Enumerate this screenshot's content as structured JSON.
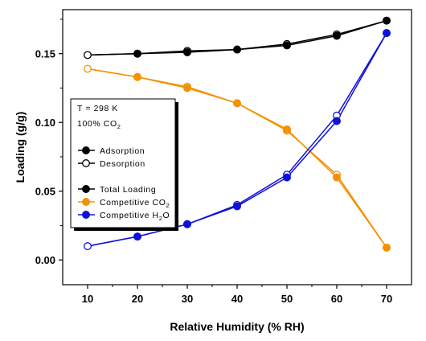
{
  "chart_data": {
    "type": "line",
    "xlabel": "Relative Humidity (% RH)",
    "ylabel": "Loading (g/g)",
    "x": [
      10,
      20,
      30,
      40,
      50,
      60,
      70
    ],
    "xlim": [
      5,
      75
    ],
    "ylim": [
      -0.018,
      0.182
    ],
    "xticks": [
      "10",
      "20",
      "30",
      "40",
      "50",
      "60",
      "70"
    ],
    "yticks": [
      "0.00",
      "0.05",
      "0.10",
      "0.15"
    ],
    "conditions": {
      "temperature": "T = 298 K",
      "gas": "100% CO",
      "gas_subscript": "2"
    },
    "legend": {
      "placement": "upper-left",
      "marker_entries": [
        {
          "label": "Adsorption",
          "marker": "filled",
          "color": "#000000"
        },
        {
          "label": "Desorption",
          "marker": "open",
          "color": "#000000"
        }
      ],
      "series_entries": [
        {
          "label": "Total Loading",
          "subscript": "",
          "color": "#000000"
        },
        {
          "label": "Competitive CO",
          "subscript": "2",
          "color": "#f39200"
        },
        {
          "label": "Competitive H",
          "subscript": "2",
          "label_tail": "O",
          "color": "#1010d8"
        }
      ]
    },
    "series": [
      {
        "name": "Total Loading",
        "color": "#000000",
        "adsorption": [
          0.149,
          0.15,
          0.151,
          0.153,
          0.156,
          0.163,
          0.174
        ],
        "desorption": [
          0.149,
          0.15,
          0.152,
          0.153,
          0.157,
          0.164,
          0.174
        ]
      },
      {
        "name": "Competitive CO2",
        "color": "#f39200",
        "adsorption": [
          0.139,
          0.133,
          0.125,
          0.114,
          0.095,
          0.06,
          0.009
        ],
        "desorption": [
          0.139,
          0.133,
          0.126,
          0.114,
          0.094,
          0.062,
          0.009
        ]
      },
      {
        "name": "Competitive H2O",
        "color": "#1010d8",
        "adsorption": [
          0.01,
          0.017,
          0.026,
          0.039,
          0.06,
          0.101,
          0.165
        ],
        "desorption": [
          0.01,
          0.017,
          0.026,
          0.04,
          0.062,
          0.105,
          0.165
        ]
      }
    ]
  }
}
